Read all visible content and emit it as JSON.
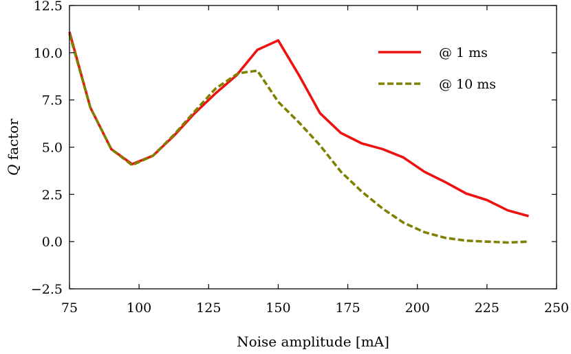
{
  "chart_data": {
    "type": "line",
    "xlabel": "Noise amplitude [mA]",
    "ylabel": "Q factor",
    "xlim": [
      75,
      250
    ],
    "ylim": [
      -2.5,
      12.5
    ],
    "xticks": [
      75,
      100,
      125,
      150,
      175,
      200,
      225,
      250
    ],
    "xtick_labels": [
      "75",
      "100",
      "125",
      "150",
      "175",
      "200",
      "225",
      "250"
    ],
    "yticks": [
      -2.5,
      0.0,
      2.5,
      5.0,
      7.5,
      10.0,
      12.5
    ],
    "ytick_labels": [
      "−2.5",
      "0.0",
      "2.5",
      "5.0",
      "7.5",
      "10.0",
      "12.5"
    ],
    "grid": false,
    "legend_position": "top-right",
    "series": [
      {
        "name": "@ 1 ms",
        "color": "#ee1111",
        "style": "solid",
        "x": [
          75,
          82.5,
          90,
          97.5,
          105,
          112.5,
          120,
          127.5,
          135,
          142.5,
          150,
          157.5,
          165,
          172.5,
          180,
          187.5,
          195,
          202.5,
          210,
          217.5,
          225,
          232.5,
          240
        ],
        "y": [
          11.1,
          7.1,
          4.9,
          4.1,
          4.55,
          5.6,
          6.8,
          7.85,
          8.8,
          10.15,
          10.65,
          8.8,
          6.8,
          5.75,
          5.2,
          4.9,
          4.45,
          3.7,
          3.15,
          2.55,
          2.2,
          1.65,
          1.35
        ]
      },
      {
        "name": "@ 10 ms",
        "color": "#808000",
        "style": "dashed",
        "x": [
          75,
          82.5,
          90,
          97.5,
          105,
          112.5,
          120,
          127.5,
          135,
          137.5,
          142.5,
          150,
          157.5,
          165,
          172.5,
          180,
          187.5,
          195,
          202.5,
          210,
          217.5,
          225,
          232.5,
          240
        ],
        "y": [
          11.0,
          7.1,
          4.9,
          4.05,
          4.55,
          5.65,
          6.9,
          8.1,
          8.85,
          8.95,
          9.05,
          7.4,
          6.3,
          5.1,
          3.7,
          2.65,
          1.75,
          1.0,
          0.5,
          0.2,
          0.05,
          0.0,
          -0.05,
          0.0
        ]
      }
    ]
  }
}
